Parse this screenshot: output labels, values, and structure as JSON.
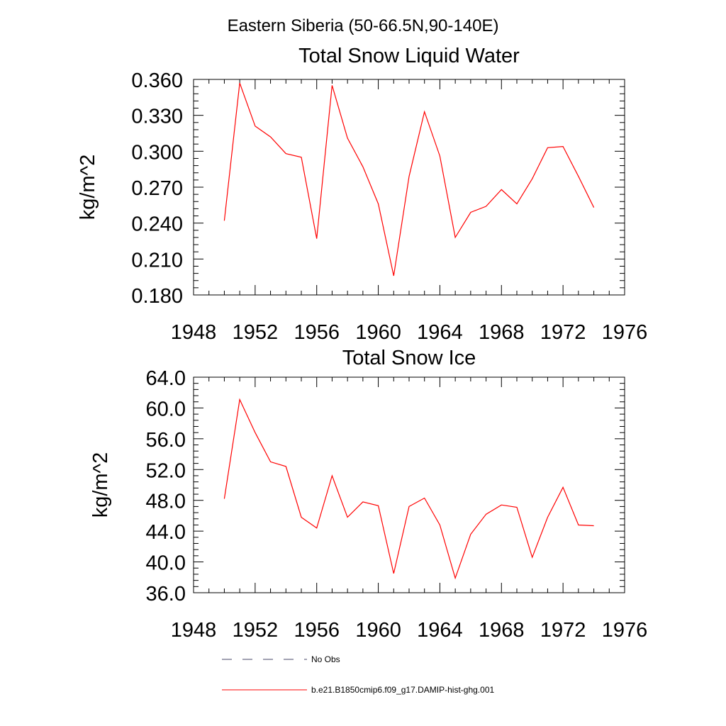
{
  "figure": {
    "suptitle": "Eastern Siberia (50-66.5N,90-140E)"
  },
  "chart_data": [
    {
      "type": "line",
      "title": "Total Snow Liquid Water",
      "xlabel": "",
      "ylabel": "kg/m^2",
      "xlim": [
        1948,
        1976
      ],
      "ylim": [
        0.18,
        0.36
      ],
      "x_ticks": [
        "1948",
        "1952",
        "1956",
        "1960",
        "1964",
        "1968",
        "1972",
        "1976"
      ],
      "y_ticks": [
        "0.180",
        "0.210",
        "0.240",
        "0.270",
        "0.300",
        "0.330",
        "0.360"
      ],
      "grid": false,
      "x": [
        1950,
        1951,
        1952,
        1953,
        1954,
        1955,
        1956,
        1957,
        1958,
        1959,
        1960,
        1961,
        1962,
        1963,
        1964,
        1965,
        1966,
        1967,
        1968,
        1969,
        1970,
        1971,
        1972,
        1973,
        1974
      ],
      "series": [
        {
          "name": "b.e21.B1850cmip6.f09_g17.DAMIP-hist-ghg.001",
          "color": "#ff0000",
          "values": [
            0.242,
            0.357,
            0.321,
            0.312,
            0.298,
            0.295,
            0.227,
            0.355,
            0.311,
            0.287,
            0.256,
            0.196,
            0.279,
            0.333,
            0.296,
            0.228,
            0.249,
            0.254,
            0.268,
            0.256,
            0.277,
            0.303,
            0.304,
            0.279,
            0.253
          ]
        }
      ]
    },
    {
      "type": "line",
      "title": "Total Snow Ice",
      "xlabel": "",
      "ylabel": "kg/m^2",
      "xlim": [
        1948,
        1976
      ],
      "ylim": [
        36.0,
        64.0
      ],
      "x_ticks": [
        "1948",
        "1952",
        "1956",
        "1960",
        "1964",
        "1968",
        "1972",
        "1976"
      ],
      "y_ticks": [
        "36.0",
        "40.0",
        "44.0",
        "48.0",
        "52.0",
        "56.0",
        "60.0",
        "64.0"
      ],
      "grid": false,
      "x": [
        1950,
        1951,
        1952,
        1953,
        1954,
        1955,
        1956,
        1957,
        1958,
        1959,
        1960,
        1961,
        1962,
        1963,
        1964,
        1965,
        1966,
        1967,
        1968,
        1969,
        1970,
        1971,
        1972,
        1973,
        1974
      ],
      "series": [
        {
          "name": "b.e21.B1850cmip6.f09_g17.DAMIP-hist-ghg.001",
          "color": "#ff0000",
          "values": [
            48.2,
            61.1,
            56.8,
            53.0,
            52.4,
            45.8,
            44.4,
            51.2,
            45.8,
            47.8,
            47.3,
            38.5,
            47.2,
            48.3,
            44.8,
            37.9,
            43.6,
            46.2,
            47.4,
            47.1,
            40.6,
            45.8,
            49.7,
            44.8,
            44.7
          ]
        }
      ]
    }
  ],
  "legend": {
    "placement": "bottom-center",
    "items": [
      {
        "label": "No Obs",
        "style": "dashed",
        "color": "#444466"
      },
      {
        "label": "b.e21.B1850cmip6.f09_g17.DAMIP-hist-ghg.001",
        "style": "solid",
        "color": "#ff0000"
      }
    ]
  }
}
